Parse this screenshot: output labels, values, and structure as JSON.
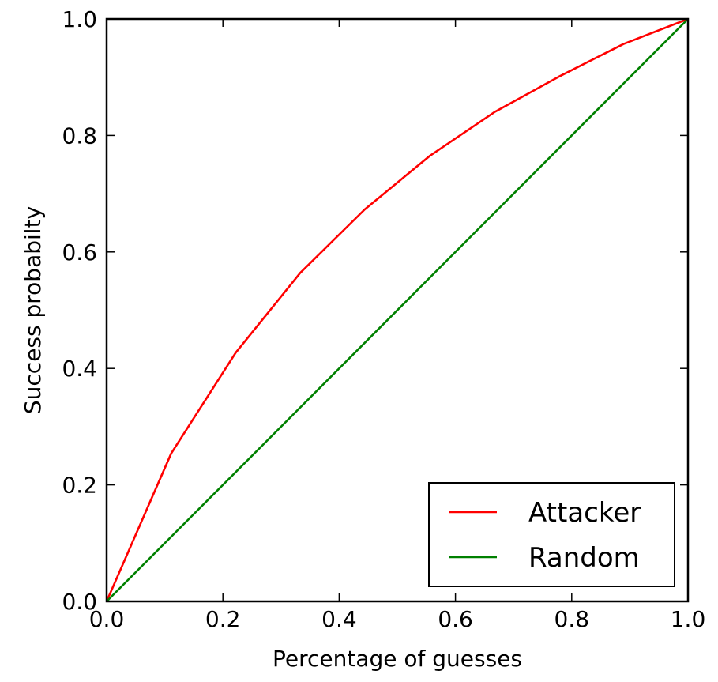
{
  "chart_data": {
    "type": "line",
    "title": "",
    "xlabel": "Percentage of guesses",
    "ylabel": "Success probabilty",
    "xlim": [
      0.0,
      1.0
    ],
    "ylim": [
      0.0,
      1.0
    ],
    "xticks": [
      "0.0",
      "0.2",
      "0.4",
      "0.6",
      "0.8",
      "1.0"
    ],
    "yticks": [
      "0.0",
      "0.2",
      "0.4",
      "0.6",
      "0.8",
      "1.0"
    ],
    "grid": false,
    "legend_position": "bottom-right",
    "series": [
      {
        "name": "Attacker",
        "color": "#ff0000",
        "x": [
          0.0,
          0.111,
          0.222,
          0.333,
          0.444,
          0.556,
          0.667,
          0.778,
          0.889,
          1.0
        ],
        "y": [
          0.0,
          0.254,
          0.427,
          0.564,
          0.673,
          0.765,
          0.84,
          0.901,
          0.957,
          1.0
        ]
      },
      {
        "name": "Random",
        "color": "#008000",
        "x": [
          0.0,
          1.0
        ],
        "y": [
          0.0,
          1.0
        ]
      }
    ]
  }
}
